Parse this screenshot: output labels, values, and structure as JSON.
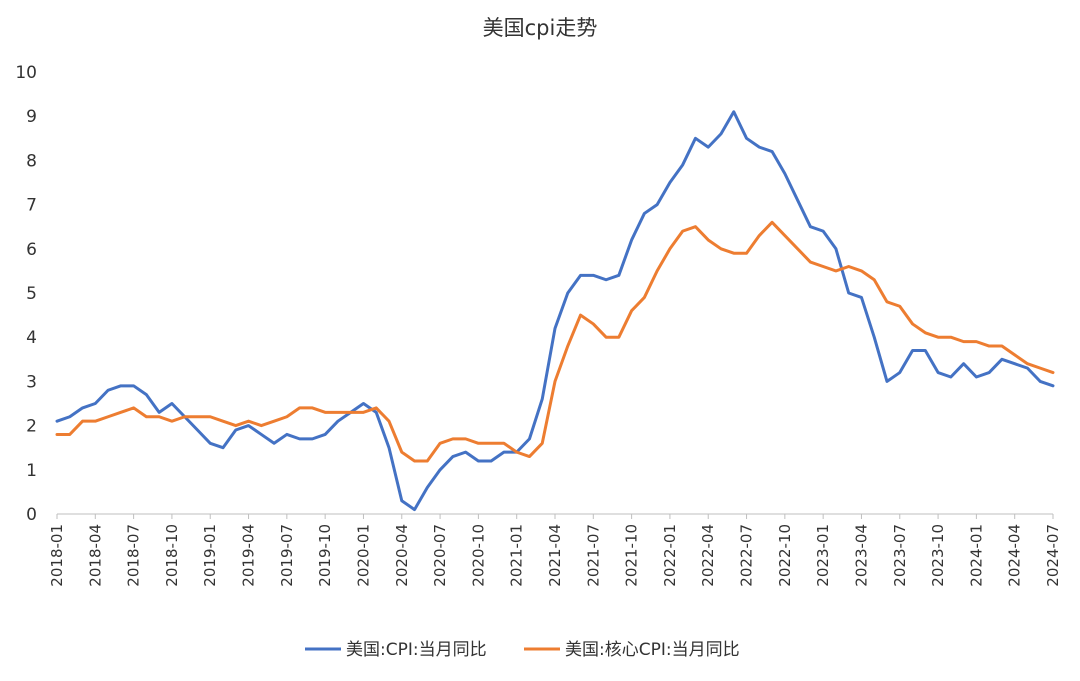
{
  "chart_data": {
    "type": "line",
    "title": "美国cpi走势",
    "xlabel": "",
    "ylabel": "",
    "ylim": [
      0,
      10
    ],
    "yticks": [
      0,
      1,
      2,
      3,
      4,
      5,
      6,
      7,
      8,
      9,
      10
    ],
    "grid": false,
    "legend_position": "bottom",
    "x_tick_labels": [
      "2018-01",
      "2018-04",
      "2018-07",
      "2018-10",
      "2019-01",
      "2019-04",
      "2019-07",
      "2019-10",
      "2020-01",
      "2020-04",
      "2020-07",
      "2020-10",
      "2021-01",
      "2021-04",
      "2021-07",
      "2021-10",
      "2022-01",
      "2022-04",
      "2022-07",
      "2022-10",
      "2023-01",
      "2023-04",
      "2023-07",
      "2023-10",
      "2024-01",
      "2024-04",
      "2024-07"
    ],
    "x": [
      "2018-01",
      "2018-02",
      "2018-03",
      "2018-04",
      "2018-05",
      "2018-06",
      "2018-07",
      "2018-08",
      "2018-09",
      "2018-10",
      "2018-11",
      "2018-12",
      "2019-01",
      "2019-02",
      "2019-03",
      "2019-04",
      "2019-05",
      "2019-06",
      "2019-07",
      "2019-08",
      "2019-09",
      "2019-10",
      "2019-11",
      "2019-12",
      "2020-01",
      "2020-02",
      "2020-03",
      "2020-04",
      "2020-05",
      "2020-06",
      "2020-07",
      "2020-08",
      "2020-09",
      "2020-10",
      "2020-11",
      "2020-12",
      "2021-01",
      "2021-02",
      "2021-03",
      "2021-04",
      "2021-05",
      "2021-06",
      "2021-07",
      "2021-08",
      "2021-09",
      "2021-10",
      "2021-11",
      "2021-12",
      "2022-01",
      "2022-02",
      "2022-03",
      "2022-04",
      "2022-05",
      "2022-06",
      "2022-07",
      "2022-08",
      "2022-09",
      "2022-10",
      "2022-11",
      "2022-12",
      "2023-01",
      "2023-02",
      "2023-03",
      "2023-04",
      "2023-05",
      "2023-06",
      "2023-07",
      "2023-08",
      "2023-09",
      "2023-10",
      "2023-11",
      "2023-12",
      "2024-01",
      "2024-02",
      "2024-03",
      "2024-04",
      "2024-05",
      "2024-06",
      "2024-07"
    ],
    "series": [
      {
        "name": "美国:CPI:当月同比",
        "color": "#4472C4",
        "values": [
          2.1,
          2.2,
          2.4,
          2.5,
          2.8,
          2.9,
          2.9,
          2.7,
          2.3,
          2.5,
          2.2,
          1.9,
          1.6,
          1.5,
          1.9,
          2.0,
          1.8,
          1.6,
          1.8,
          1.7,
          1.7,
          1.8,
          2.1,
          2.3,
          2.5,
          2.3,
          1.5,
          0.3,
          0.1,
          0.6,
          1.0,
          1.3,
          1.4,
          1.2,
          1.2,
          1.4,
          1.4,
          1.7,
          2.6,
          4.2,
          5.0,
          5.4,
          5.4,
          5.3,
          5.4,
          6.2,
          6.8,
          7.0,
          7.5,
          7.9,
          8.5,
          8.3,
          8.6,
          9.1,
          8.5,
          8.3,
          8.2,
          7.7,
          7.1,
          6.5,
          6.4,
          6.0,
          5.0,
          4.9,
          4.0,
          3.0,
          3.2,
          3.7,
          3.7,
          3.2,
          3.1,
          3.4,
          3.1,
          3.2,
          3.5,
          3.4,
          3.3,
          3.0,
          2.9
        ]
      },
      {
        "name": "美国:核心CPI:当月同比",
        "color": "#ED7D31",
        "values": [
          1.8,
          1.8,
          2.1,
          2.1,
          2.2,
          2.3,
          2.4,
          2.2,
          2.2,
          2.1,
          2.2,
          2.2,
          2.2,
          2.1,
          2.0,
          2.1,
          2.0,
          2.1,
          2.2,
          2.4,
          2.4,
          2.3,
          2.3,
          2.3,
          2.3,
          2.4,
          2.1,
          1.4,
          1.2,
          1.2,
          1.6,
          1.7,
          1.7,
          1.6,
          1.6,
          1.6,
          1.4,
          1.3,
          1.6,
          3.0,
          3.8,
          4.5,
          4.3,
          4.0,
          4.0,
          4.6,
          4.9,
          5.5,
          6.0,
          6.4,
          6.5,
          6.2,
          6.0,
          5.9,
          5.9,
          6.3,
          6.6,
          6.3,
          6.0,
          5.7,
          5.6,
          5.5,
          5.6,
          5.5,
          5.3,
          4.8,
          4.7,
          4.3,
          4.1,
          4.0,
          4.0,
          3.9,
          3.9,
          3.8,
          3.8,
          3.6,
          3.4,
          3.3,
          3.2
        ]
      }
    ]
  }
}
